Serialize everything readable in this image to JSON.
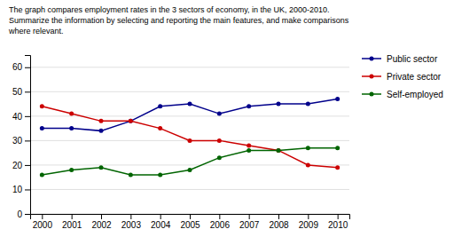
{
  "chart_data": {
    "type": "line",
    "title": "The graph compares employment rates in the 3 sectors of economy, in the UK, 2000-2010.\nSummarize the information by selecting and reporting the main features, and make comparisons\nwhere relevant.",
    "x": [
      2000,
      2001,
      2002,
      2003,
      2004,
      2005,
      2006,
      2007,
      2008,
      2009,
      2010
    ],
    "series": [
      {
        "name": "Public sector",
        "color": "#00008B",
        "values": [
          35,
          35,
          34,
          38,
          44,
          45,
          41,
          44,
          45,
          45,
          47
        ]
      },
      {
        "name": "Private sector",
        "color": "#CC0000",
        "values": [
          44,
          41,
          38,
          38,
          35,
          30,
          30,
          28,
          26,
          20,
          19
        ]
      },
      {
        "name": "Self-employed",
        "color": "#006400",
        "values": [
          16,
          18,
          19,
          16,
          16,
          18,
          23,
          26,
          26,
          27,
          27
        ]
      }
    ],
    "xlim": [
      1999.6,
      2010.4
    ],
    "xticks": [
      2000,
      2001,
      2002,
      2003,
      2004,
      2005,
      2006,
      2007,
      2008,
      2009,
      2010
    ],
    "ylim": [
      0,
      65
    ],
    "yticks": [
      0,
      10,
      20,
      30,
      40,
      50,
      60
    ],
    "grid": true,
    "legend": "right",
    "marker": "circle"
  }
}
